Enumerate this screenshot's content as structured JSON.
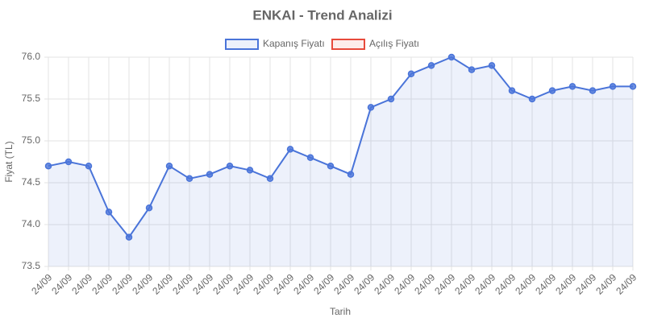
{
  "chart_data": {
    "type": "line",
    "title": "ENKAI - Trend Analizi",
    "xlabel": "Tarih",
    "ylabel": "Fiyat (TL)",
    "categories": [
      "24/09",
      "24/09",
      "24/09",
      "24/09",
      "24/09",
      "24/09",
      "24/09",
      "24/09",
      "24/09",
      "24/09",
      "24/09",
      "24/09",
      "24/09",
      "24/09",
      "24/09",
      "24/09",
      "24/09",
      "24/09",
      "24/09",
      "24/09",
      "24/09",
      "24/09",
      "24/09",
      "24/09",
      "24/09",
      "24/09",
      "24/09",
      "24/09",
      "24/09",
      "24/09"
    ],
    "series": [
      {
        "name": "Kapanış Fiyatı",
        "color": "#4a74d9",
        "values": [
          74.7,
          74.75,
          74.7,
          74.15,
          73.85,
          74.2,
          74.7,
          74.55,
          74.6,
          74.7,
          74.65,
          74.55,
          74.9,
          74.8,
          74.7,
          74.6,
          75.4,
          75.5,
          75.8,
          75.9,
          76.0,
          75.85,
          75.9,
          75.6,
          75.5,
          75.6,
          75.65,
          75.6,
          75.65,
          75.65
        ]
      },
      {
        "name": "Açılış Fiyatı",
        "color": "#e74a3b",
        "values": [
          null,
          null,
          null,
          null,
          null,
          null,
          null,
          null,
          null,
          null,
          null,
          null,
          null,
          null,
          null,
          null,
          null,
          null,
          null,
          null,
          null,
          null,
          null,
          null,
          null,
          null,
          null,
          null,
          null,
          null
        ]
      }
    ],
    "ylim": [
      73.5,
      76.0
    ],
    "yticks": [
      73.5,
      {
        "value": 74.0,
        "label": "74.0"
      },
      74.5,
      {
        "value": 75.0,
        "label": "75.0"
      },
      75.5,
      {
        "value": 76.0,
        "label": "76.0"
      }
    ],
    "grid": true,
    "legend": "top"
  }
}
